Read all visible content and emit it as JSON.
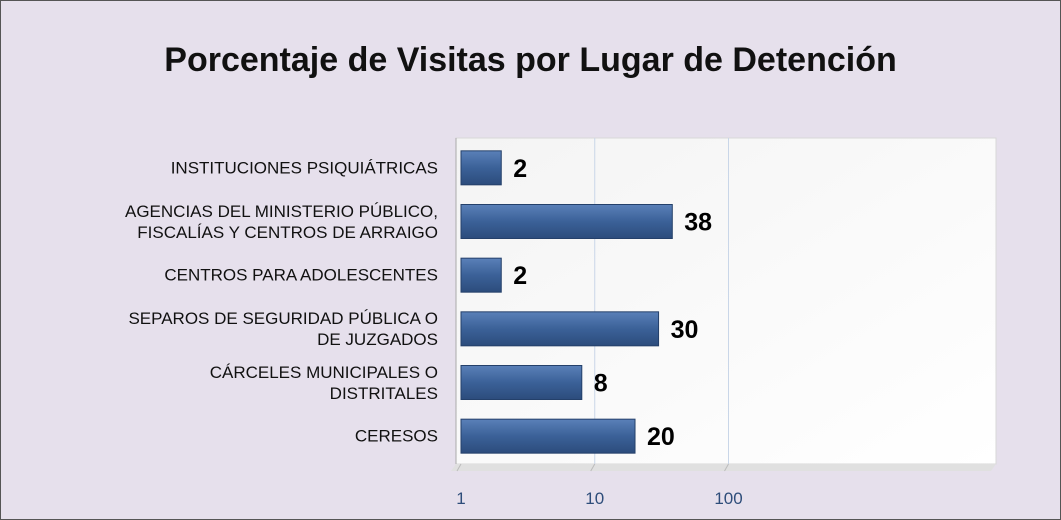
{
  "chart_data": {
    "type": "barh",
    "title": "Porcentaje de Visitas por Lugar de Detención",
    "categories": [
      "INSTITUCIONES PSIQUIÁTRICAS",
      "AGENCIAS DEL MINISTERIO PÚBLICO,\nFISCALÍAS Y CENTROS DE ARRAIGO",
      "CENTROS PARA ADOLESCENTES",
      "SEPAROS DE SEGURIDAD PÚBLICA O\nDE JUZGADOS",
      "CÁRCELES MUNICIPALES O\nDISTRITALES",
      "CERESOS"
    ],
    "values": [
      2,
      38,
      2,
      30,
      8,
      20
    ],
    "color": "#3b6198",
    "xlim": [
      1,
      10000
    ],
    "xticks": [
      1,
      10,
      100
    ],
    "log_x": true,
    "grid": true
  }
}
